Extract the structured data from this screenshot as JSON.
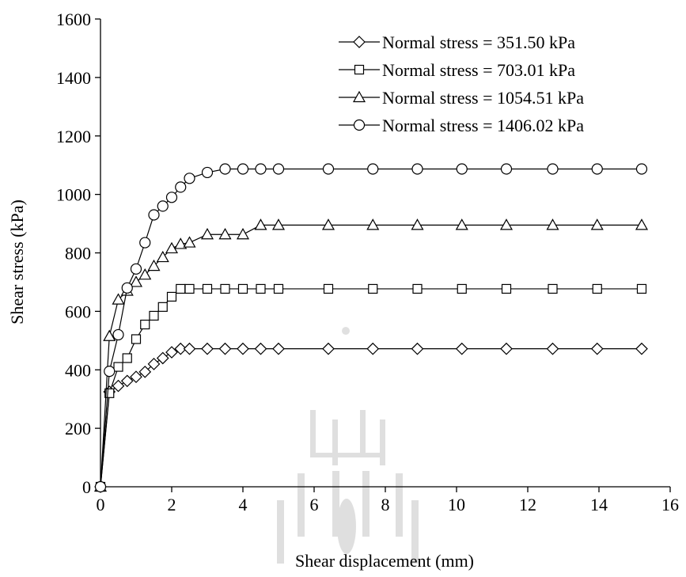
{
  "chart_data": {
    "type": "line",
    "xlabel": "Shear displacement (mm)",
    "ylabel": "Shear stress (kPa)",
    "xlim": [
      0,
      16
    ],
    "ylim": [
      0,
      1600
    ],
    "xticks": [
      "0",
      "2",
      "4",
      "6",
      "8",
      "10",
      "12",
      "14",
      "16"
    ],
    "yticks": [
      "0",
      "200",
      "400",
      "600",
      "800",
      "1000",
      "1200",
      "1400",
      "1600"
    ],
    "grid": false,
    "legend_position": "top-right",
    "series": [
      {
        "name": "Normal stress = 351.50 kPa",
        "marker": "diamond",
        "x": [
          0,
          0.25,
          0.5,
          0.75,
          1.0,
          1.25,
          1.5,
          1.75,
          2.0,
          2.25,
          2.5,
          3.0,
          3.5,
          4.0,
          4.5,
          5.0,
          6.4,
          7.65,
          8.9,
          10.15,
          11.4,
          12.7,
          13.95,
          15.2
        ],
        "y": [
          0,
          325,
          345,
          362,
          376,
          393,
          420,
          440,
          460,
          472,
          472,
          472,
          472,
          472,
          472,
          472,
          472,
          472,
          472,
          472,
          472,
          472,
          472,
          472
        ]
      },
      {
        "name": "Normal stress = 703.01 kPa",
        "marker": "square",
        "x": [
          0,
          0.25,
          0.5,
          0.75,
          1.0,
          1.25,
          1.5,
          1.75,
          2.0,
          2.25,
          2.5,
          3.0,
          3.5,
          4.0,
          4.5,
          5.0,
          6.4,
          7.65,
          8.9,
          10.15,
          11.4,
          12.7,
          13.95,
          15.2
        ],
        "y": [
          0,
          320,
          410,
          440,
          505,
          555,
          585,
          615,
          650,
          677,
          677,
          677,
          677,
          677,
          677,
          677,
          677,
          677,
          677,
          677,
          677,
          677,
          677,
          677
        ]
      },
      {
        "name": "Normal stress = 1054.51 kPa",
        "marker": "triangle",
        "x": [
          0,
          0.25,
          0.5,
          0.75,
          1.0,
          1.25,
          1.5,
          1.75,
          2.0,
          2.25,
          2.5,
          3.0,
          3.5,
          4.0,
          4.5,
          5.0,
          6.4,
          7.65,
          8.9,
          10.15,
          11.4,
          12.7,
          13.95,
          15.2
        ],
        "y": [
          0,
          515,
          640,
          670,
          700,
          725,
          755,
          785,
          815,
          830,
          835,
          863,
          863,
          863,
          895,
          895,
          895,
          895,
          895,
          895,
          895,
          895,
          895,
          895
        ]
      },
      {
        "name": "Normal stress = 1406.02 kPa",
        "marker": "circle",
        "x": [
          0,
          0.25,
          0.5,
          0.75,
          1.0,
          1.25,
          1.5,
          1.75,
          2.0,
          2.25,
          2.5,
          3.0,
          3.5,
          4.0,
          4.5,
          5.0,
          6.4,
          7.65,
          8.9,
          10.15,
          11.4,
          12.7,
          13.95,
          15.2
        ],
        "y": [
          0,
          395,
          520,
          680,
          745,
          835,
          930,
          960,
          990,
          1025,
          1055,
          1075,
          1087,
          1087,
          1087,
          1087,
          1087,
          1087,
          1087,
          1087,
          1087,
          1087,
          1087,
          1087
        ]
      }
    ]
  }
}
